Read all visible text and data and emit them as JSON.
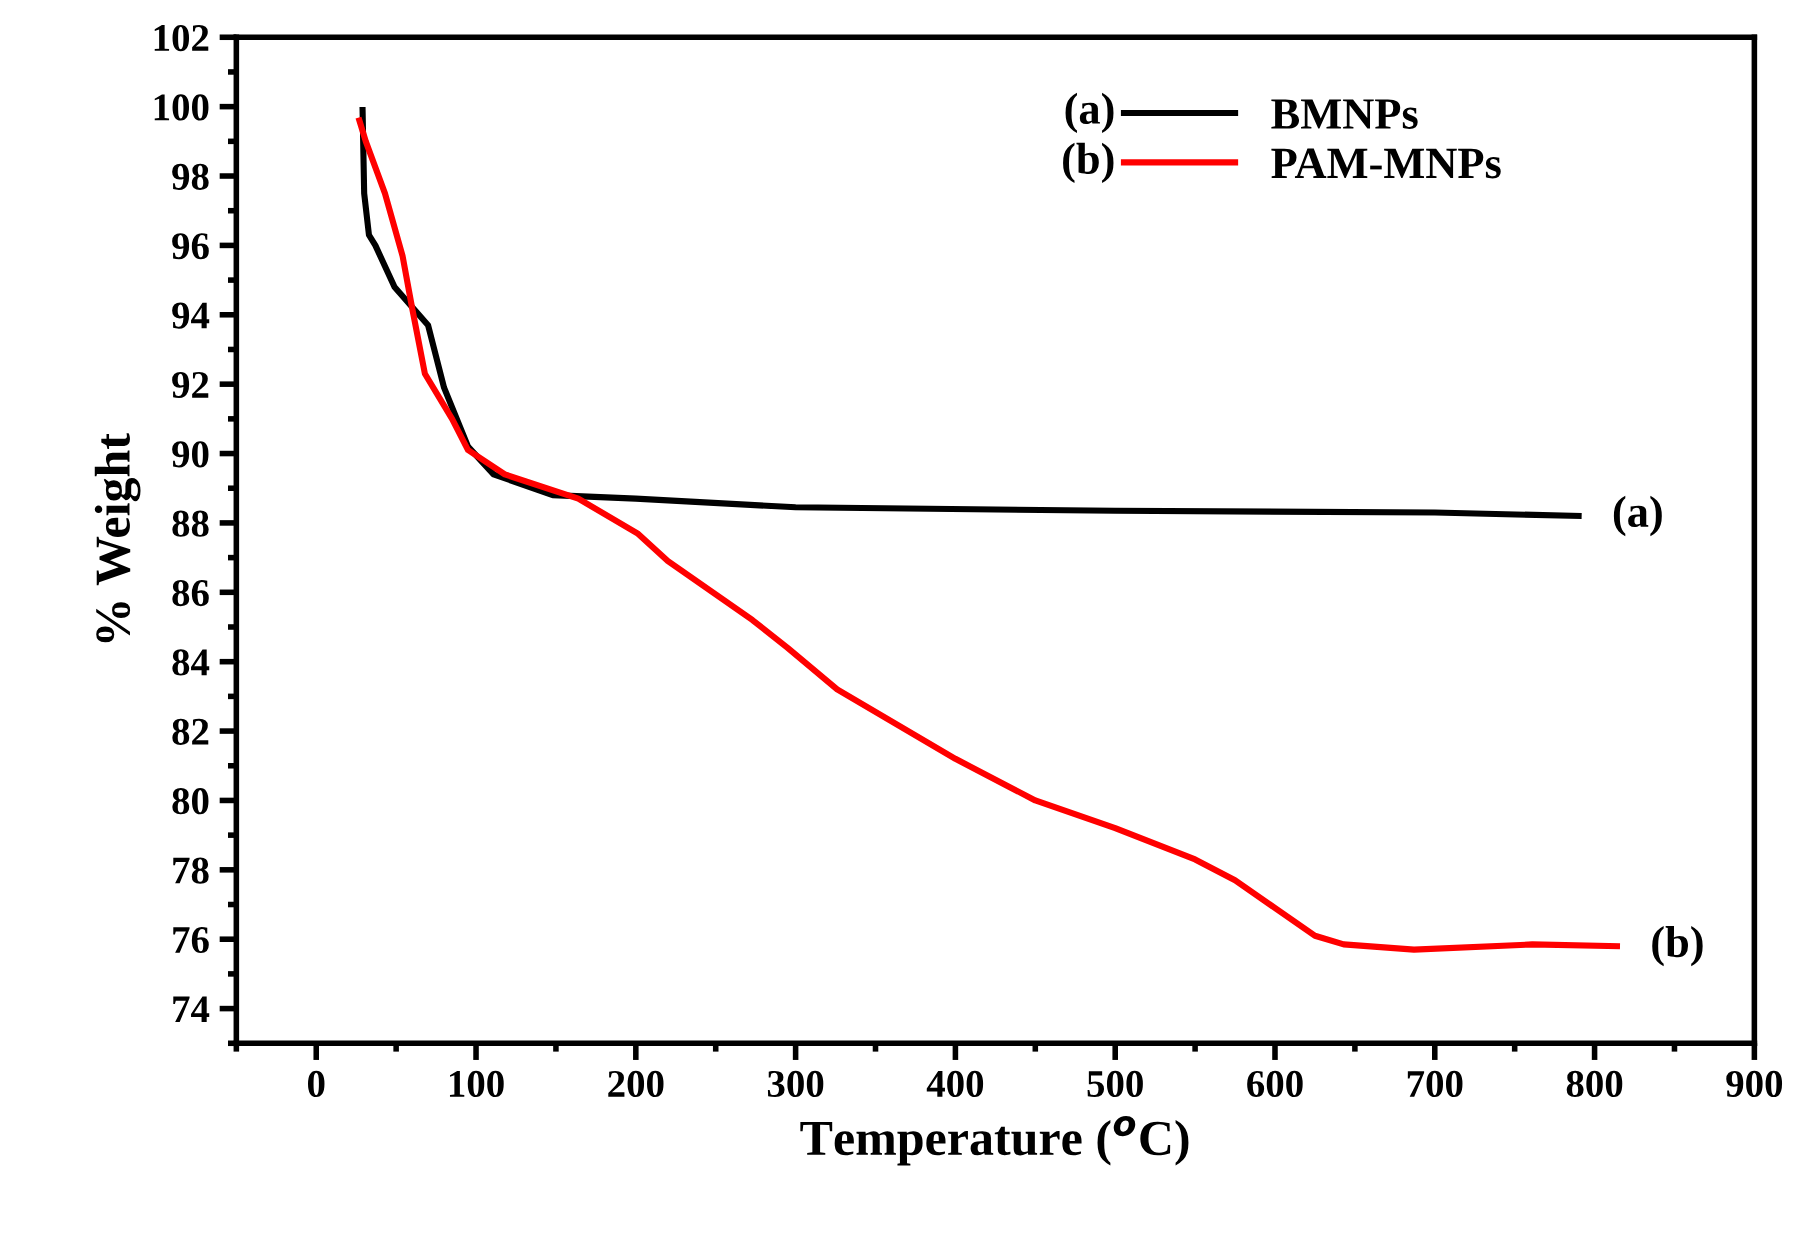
{
  "chart_data": {
    "type": "line",
    "xlabel": "Temperature ($^{o}$C)",
    "ylabel": "% Weight",
    "xlim": [
      -50,
      900
    ],
    "ylim": [
      73,
      102
    ],
    "xticks": [
      0,
      100,
      200,
      300,
      400,
      500,
      600,
      700,
      800,
      900
    ],
    "yticks": [
      74,
      76,
      78,
      80,
      82,
      84,
      86,
      88,
      90,
      92,
      94,
      96,
      98,
      100,
      102
    ],
    "legend": "top right",
    "grid": false,
    "series": [
      {
        "name": "BMNPs",
        "color": "#000000",
        "x": [
          29,
          30,
          33,
          37,
          49,
          70,
          80,
          95,
          111,
          148,
          200,
          300,
          500,
          700,
          790
        ],
        "values": [
          99.9,
          97.5,
          96.3,
          96.0,
          94.8,
          93.7,
          91.9,
          90.2,
          89.4,
          88.8,
          88.7,
          88.45,
          88.35,
          88.3,
          88.2
        ]
      },
      {
        "name": "PAM-MNPs",
        "color": "#ff0000",
        "x": [
          27,
          31,
          43,
          54,
          60,
          68,
          85,
          95,
          118,
          164,
          201,
          220,
          273,
          295,
          326,
          400,
          450,
          500,
          550,
          575,
          600,
          625,
          643,
          687,
          761,
          814
        ],
        "values": [
          99.6,
          99.0,
          97.5,
          95.7,
          94.2,
          92.3,
          91.0,
          90.1,
          89.4,
          88.7,
          87.7,
          86.9,
          85.2,
          84.4,
          83.2,
          81.2,
          80.0,
          79.2,
          78.3,
          77.7,
          76.9,
          76.1,
          75.85,
          75.7,
          75.85,
          75.8
        ]
      }
    ],
    "annotations": [
      "(a)",
      "(b)",
      {
        "text": "(a)",
        "x": 790,
        "y": 88.2
      },
      {
        "text": "(b)",
        "x": 814,
        "y": 75.8
      }
    ]
  }
}
